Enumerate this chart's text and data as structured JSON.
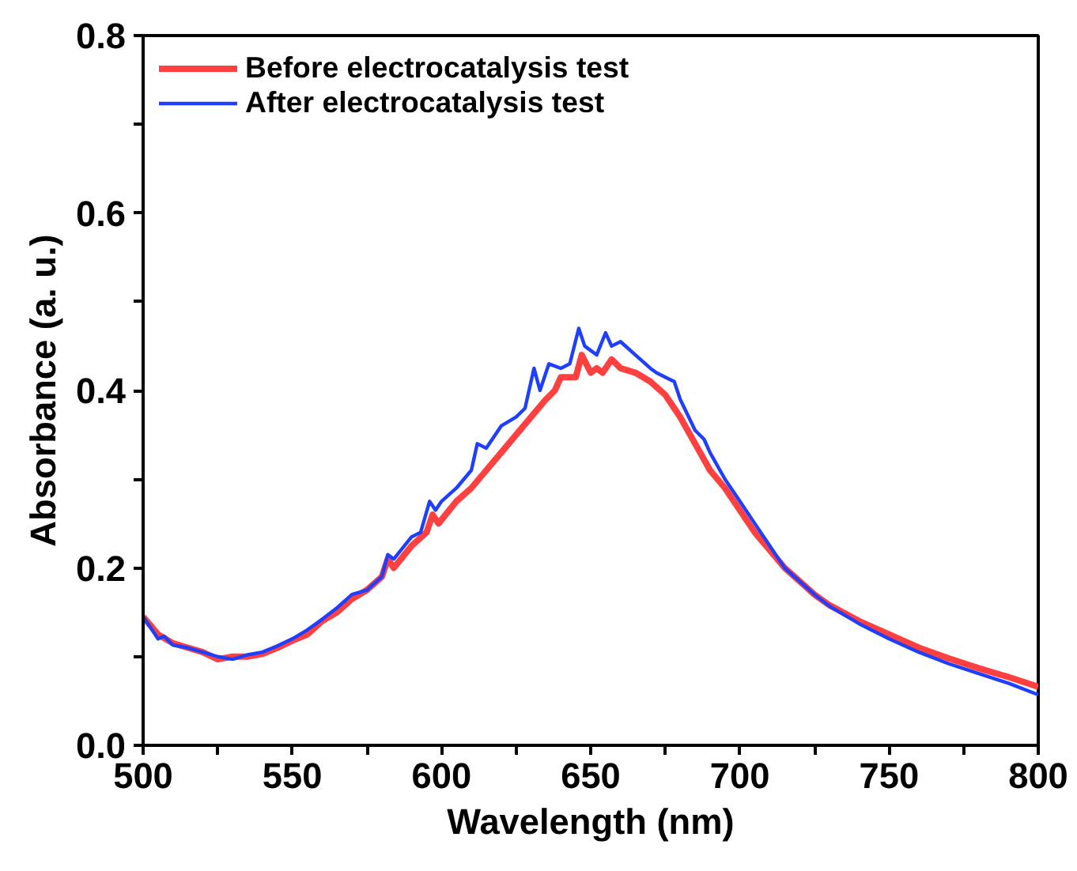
{
  "chart_data": {
    "type": "line",
    "xlabel": "Wavelength (nm)",
    "ylabel": "Absorbance (a. u.)",
    "xlim": [
      500,
      800
    ],
    "ylim": [
      0,
      0.8
    ],
    "xticks": [
      500,
      {
        "value": 525,
        "label": null
      },
      550,
      {
        "value": 575,
        "label": null
      },
      600,
      {
        "value": 625,
        "label": null
      },
      650,
      {
        "value": 675,
        "label": null
      },
      700,
      {
        "value": 725,
        "label": null
      },
      750,
      {
        "value": 775,
        "label": null
      },
      800
    ],
    "yticks": [
      {
        "value": 0,
        "label": "0.0"
      },
      {
        "value": 0.1,
        "label": null
      },
      {
        "value": 0.2,
        "label": "0.2"
      },
      {
        "value": 0.3,
        "label": null
      },
      {
        "value": 0.4,
        "label": "0.4"
      },
      {
        "value": 0.5,
        "label": null
      },
      {
        "value": 0.6,
        "label": "0.6"
      },
      {
        "value": 0.7,
        "label": null
      },
      {
        "value": 0.8,
        "label": "0.8"
      }
    ],
    "grid": false,
    "legend": "top left",
    "marker": "none",
    "line_style": "solid",
    "series": [
      {
        "name": "Before electrocatalysis test",
        "color": "#ff4040",
        "x": [
          500,
          505,
          510,
          515,
          520,
          525,
          530,
          535,
          540,
          545,
          550,
          555,
          560,
          565,
          570,
          575,
          580,
          582,
          584,
          590,
          595,
          597,
          599,
          605,
          610,
          615,
          620,
          625,
          630,
          635,
          638,
          640,
          645,
          647,
          650,
          652,
          654,
          657,
          660,
          665,
          670,
          675,
          680,
          685,
          690,
          695,
          700,
          705,
          710,
          715,
          720,
          725,
          730,
          740,
          750,
          760,
          770,
          780,
          790,
          800
        ],
        "values": [
          0.145,
          0.125,
          0.115,
          0.11,
          0.105,
          0.097,
          0.1,
          0.1,
          0.103,
          0.11,
          0.118,
          0.125,
          0.14,
          0.15,
          0.165,
          0.175,
          0.19,
          0.21,
          0.2,
          0.225,
          0.24,
          0.26,
          0.25,
          0.275,
          0.29,
          0.31,
          0.33,
          0.35,
          0.37,
          0.39,
          0.4,
          0.415,
          0.415,
          0.44,
          0.42,
          0.425,
          0.42,
          0.435,
          0.425,
          0.42,
          0.41,
          0.395,
          0.37,
          0.34,
          0.31,
          0.29,
          0.265,
          0.24,
          0.22,
          0.2,
          0.185,
          0.17,
          0.158,
          0.14,
          0.125,
          0.11,
          0.098,
          0.087,
          0.077,
          0.066
        ]
      },
      {
        "name": "After electrocatalysis test",
        "color": "#1f3fff",
        "x": [
          500,
          503,
          505,
          507,
          510,
          515,
          520,
          525,
          530,
          535,
          540,
          545,
          550,
          555,
          560,
          565,
          570,
          575,
          580,
          582,
          584,
          590,
          593,
          596,
          598,
          600,
          605,
          610,
          612,
          615,
          620,
          625,
          628,
          631,
          633,
          636,
          640,
          643,
          646,
          648,
          652,
          655,
          657,
          660,
          665,
          670,
          672,
          675,
          678,
          680,
          685,
          688,
          690,
          695,
          700,
          705,
          710,
          715,
          720,
          725,
          730,
          740,
          750,
          760,
          770,
          780,
          790,
          800
        ],
        "values": [
          0.145,
          0.13,
          0.12,
          0.123,
          0.113,
          0.11,
          0.105,
          0.1,
          0.097,
          0.102,
          0.105,
          0.112,
          0.12,
          0.13,
          0.142,
          0.155,
          0.17,
          0.175,
          0.19,
          0.215,
          0.21,
          0.235,
          0.24,
          0.275,
          0.265,
          0.275,
          0.29,
          0.31,
          0.34,
          0.335,
          0.36,
          0.37,
          0.38,
          0.425,
          0.4,
          0.43,
          0.425,
          0.43,
          0.47,
          0.45,
          0.44,
          0.465,
          0.45,
          0.455,
          0.44,
          0.425,
          0.42,
          0.415,
          0.41,
          0.39,
          0.355,
          0.345,
          0.33,
          0.3,
          0.275,
          0.25,
          0.225,
          0.2,
          0.185,
          0.17,
          0.157,
          0.137,
          0.12,
          0.105,
          0.092,
          0.081,
          0.07,
          0.057
        ]
      }
    ]
  }
}
